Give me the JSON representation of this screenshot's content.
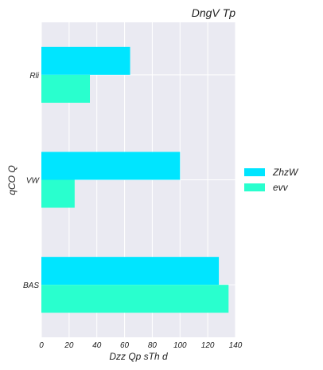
{
  "chart_data": {
    "type": "bar",
    "orientation": "horizontal",
    "title": "DngV Tp",
    "xlabel": "Dzz Qp sTh d",
    "ylabel": "qCO  Q",
    "categories": [
      "BAS",
      "VW",
      "Rli"
    ],
    "series": [
      {
        "name": "ZhzW",
        "values": [
          128,
          100,
          64
        ],
        "color": "#00e5ff"
      },
      {
        "name": "evv",
        "values": [
          135,
          24,
          35
        ],
        "color": "#29ffce"
      }
    ],
    "xlim": [
      0,
      140
    ],
    "xticks": [
      "0",
      "20",
      "40",
      "60",
      "80",
      "100",
      "120",
      "140"
    ],
    "grid": true,
    "legend_position": "right"
  }
}
